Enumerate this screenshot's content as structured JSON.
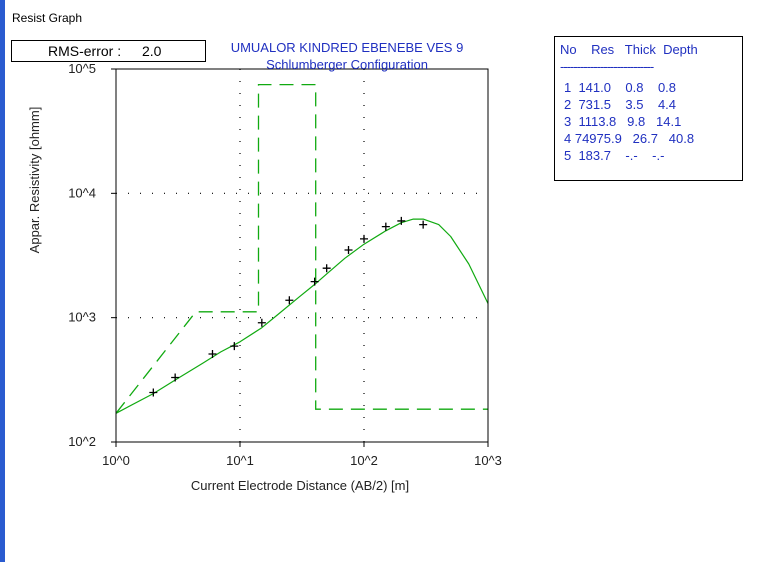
{
  "window": {
    "title": "Resist Graph"
  },
  "rms": {
    "label": "RMS-error :",
    "value": "2.0"
  },
  "title_lines": [
    "UMUALOR KINDRED EBENEBE VES 9",
    "Schlumberger Configuration"
  ],
  "table": {
    "header": "No    Res   Thick  Depth",
    "separator": "----------------------------",
    "rows": [
      "1  141.0    0.8    0.8",
      "2  731.5    3.5    4.4",
      "3  1113.8   9.8   14.1",
      "4 74975.9   26.7   40.8",
      "5  183.7    -.-    -.-"
    ]
  },
  "colors": {
    "accent": "#2030c0",
    "curve": "#11aa11",
    "left_bar": "#2a5bd0"
  },
  "chart_data": {
    "type": "line",
    "xscale": "log",
    "yscale": "log",
    "xlim": [
      1,
      1000
    ],
    "ylim": [
      100,
      100000
    ],
    "xlabel": "Current Electrode Distance (AB/2) [m]",
    "ylabel": "Appar. Resistivity [ohmm]",
    "x_ticks": [
      "10^0",
      "10^1",
      "10^2",
      "10^3"
    ],
    "y_ticks": [
      "10^2",
      "10^3",
      "10^4",
      "10^5"
    ],
    "grid": true,
    "series": [
      {
        "style": "points",
        "x": [
          2,
          3,
          6,
          9,
          15,
          25,
          40,
          50,
          75,
          100,
          150,
          200,
          300
        ],
        "y": [
          250,
          330,
          510,
          590,
          910,
          1380,
          1950,
          2500,
          3500,
          4300,
          5400,
          6000,
          5600
        ]
      },
      {
        "style": "line",
        "x": [
          1,
          2,
          3,
          5,
          7,
          10,
          15,
          20,
          30,
          40,
          50,
          70,
          100,
          150,
          200,
          250,
          300,
          400,
          500,
          700,
          1000
        ],
        "y": [
          170,
          245,
          315,
          430,
          530,
          640,
          830,
          1050,
          1470,
          1850,
          2250,
          3000,
          3900,
          5000,
          5800,
          6200,
          6200,
          5600,
          4500,
          2700,
          1300
        ]
      },
      {
        "style": "dashed-model",
        "x": [
          1,
          4.4,
          4.4,
          14.1,
          14.1,
          40.8,
          40.8,
          1000
        ],
        "y": [
          170,
          1113.8,
          1113.8,
          1113.8,
          74975.9,
          74975.9,
          183.7,
          183.7
        ]
      }
    ]
  }
}
